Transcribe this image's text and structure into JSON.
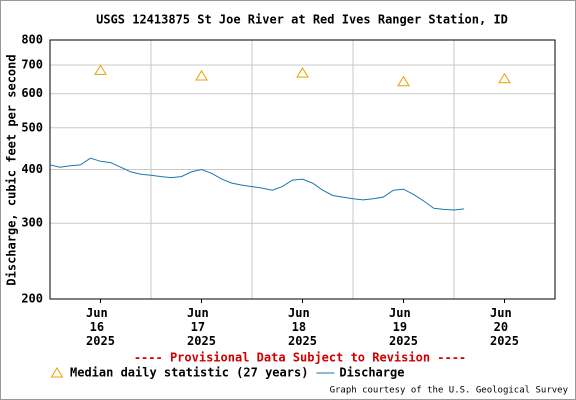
{
  "chart_data": {
    "type": "line",
    "title": "USGS 12413875 St Joe River at Red Ives Ranger Station, ID",
    "y_label": "Discharge, cubic feet per second",
    "y_log": true,
    "ylim": [
      200,
      800
    ],
    "yticks": [
      200,
      300,
      400,
      500,
      600,
      700,
      800
    ],
    "xlim": [
      16,
      21
    ],
    "xticks": [
      {
        "value": 16.5,
        "label": "Jun 16 2025"
      },
      {
        "value": 17.5,
        "label": "Jun 17 2025"
      },
      {
        "value": 18.5,
        "label": "Jun 18 2025"
      },
      {
        "value": 19.5,
        "label": "Jun 19 2025"
      },
      {
        "value": 20.5,
        "label": "Jun 20 2025"
      }
    ],
    "xgrid": [
      17,
      18,
      19,
      20
    ],
    "grid": true,
    "notice": "---- Provisional Data Subject to Revision ----",
    "credit": "Graph courtesy of the U.S. Geological Survey",
    "series": [
      {
        "name": "Median daily statistic (27 years)",
        "color": "#e8a000",
        "marker": "triangle",
        "x": [
          16.5,
          17.5,
          18.5,
          19.5,
          20.5
        ],
        "values": [
          680,
          660,
          670,
          640,
          650
        ]
      },
      {
        "name": "Discharge",
        "color": "#1a7aa8",
        "marker": "none",
        "x": [
          16.0,
          16.1,
          16.2,
          16.3,
          16.4,
          16.5,
          16.6,
          16.7,
          16.8,
          16.9,
          17.0,
          17.1,
          17.2,
          17.3,
          17.4,
          17.5,
          17.6,
          17.7,
          17.8,
          17.9,
          18.0,
          18.1,
          18.2,
          18.3,
          18.4,
          18.5,
          18.6,
          18.7,
          18.8,
          18.9,
          19.0,
          19.1,
          19.2,
          19.3,
          19.4,
          19.5,
          19.6,
          19.7,
          19.8,
          19.9,
          20.0,
          20.1
        ],
        "values": [
          410,
          405,
          408,
          410,
          425,
          418,
          415,
          405,
          395,
          390,
          388,
          385,
          383,
          385,
          395,
          400,
          392,
          380,
          372,
          368,
          365,
          362,
          358,
          365,
          378,
          380,
          372,
          358,
          348,
          345,
          342,
          340,
          342,
          345,
          358,
          360,
          350,
          338,
          325,
          323,
          322,
          324
        ]
      }
    ]
  }
}
